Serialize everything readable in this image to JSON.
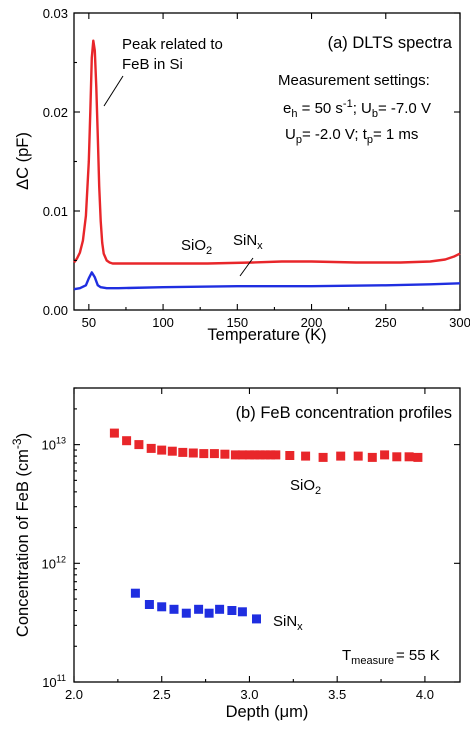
{
  "chart_data": [
    {
      "type": "line",
      "title": "(a) DLTS spectra",
      "xlabel": "Temperature (K)",
      "ylabel": "ΔC (pF)",
      "xlim": [
        40,
        300
      ],
      "ylim": [
        0,
        0.03
      ],
      "x_ticks": [
        50,
        100,
        150,
        200,
        250,
        300
      ],
      "x_tick_labels": [
        "50",
        "100",
        "150",
        "200",
        "250",
        "300"
      ],
      "y_ticks": [
        0,
        0.01,
        0.02,
        0.03
      ],
      "y_tick_labels": [
        "0.00",
        "0.01",
        "0.02",
        "0.03"
      ],
      "grid": false,
      "annotations": {
        "peak_line1": "Peak related to",
        "peak_line2": "FeB in Si",
        "settings_header": "Measurement settings:",
        "settings_row1": {
          "e": "e",
          "e_sub": "h",
          "e_val": " = 50 s",
          "e_sup": "-1",
          "u": "; U",
          "u_sub": "b",
          "u_val": "= -7.0 V"
        },
        "settings_row2": {
          "u": "U",
          "u_sub": "p",
          "u_val": "= -2.0 V; t",
          "t_sub": "p",
          "t_val": "= 1 ms"
        },
        "sio2": {
          "base": "SiO",
          "sub": "2"
        },
        "sinx": {
          "base": "SiN",
          "sub": "x"
        }
      },
      "series": [
        {
          "color": "#e8262a",
          "x": [
            40,
            42,
            44,
            46,
            48,
            50,
            51,
            52,
            53,
            54,
            55,
            56,
            57,
            58,
            59,
            60,
            62,
            64,
            66,
            70,
            80,
            100,
            130,
            160,
            180,
            200,
            230,
            260,
            280,
            290,
            296,
            300
          ],
          "y": [
            0.0048,
            0.0052,
            0.0058,
            0.007,
            0.0095,
            0.015,
            0.02,
            0.0255,
            0.0272,
            0.0262,
            0.0225,
            0.0175,
            0.0125,
            0.009,
            0.0068,
            0.0057,
            0.005,
            0.0048,
            0.0047,
            0.0047,
            0.0047,
            0.0047,
            0.0047,
            0.0048,
            0.0049,
            0.0049,
            0.0048,
            0.0048,
            0.0049,
            0.0051,
            0.0054,
            0.0057
          ]
        },
        {
          "color": "#1f2ee0",
          "x": [
            40,
            44,
            48,
            50,
            52,
            54,
            56,
            58,
            62,
            70,
            100,
            150,
            200,
            250,
            280,
            300
          ],
          "y": [
            0.0021,
            0.0022,
            0.0025,
            0.0032,
            0.0038,
            0.0033,
            0.0025,
            0.0023,
            0.0022,
            0.0022,
            0.0023,
            0.0024,
            0.0024,
            0.0025,
            0.0026,
            0.0027
          ]
        }
      ]
    },
    {
      "type": "scatter",
      "title": "(b) FeB concentration profiles",
      "xlabel": "Depth (μm)",
      "ylabel": {
        "base": "Concentration of FeB (cm",
        "sup": "-3",
        "end": ")"
      },
      "xlim": [
        2.0,
        4.2
      ],
      "ylim": [
        100000000000.0,
        30000000000000.0
      ],
      "yscale": "log",
      "x_ticks": [
        2.0,
        2.5,
        3.0,
        3.5,
        4.0
      ],
      "x_tick_labels": [
        "2.0",
        "2.5",
        "3.0",
        "3.5",
        "4.0"
      ],
      "y_ticks": [
        100000000000.0,
        1000000000000.0,
        10000000000000.0
      ],
      "y_tick_labels": [
        {
          "base": "10",
          "sup": "11"
        },
        {
          "base": "10",
          "sup": "12"
        },
        {
          "base": "10",
          "sup": "13"
        }
      ],
      "grid": false,
      "annotations": {
        "sio2": {
          "base": "SiO",
          "sub": "2"
        },
        "sinx": {
          "base": "SiN",
          "sub": "x"
        },
        "tmeasure": {
          "base": "T",
          "sub": "measure",
          "val": "= 55 K"
        }
      },
      "series": [
        {
          "color": "#e8262a",
          "x": [
            2.23,
            2.3,
            2.37,
            2.44,
            2.5,
            2.56,
            2.62,
            2.68,
            2.74,
            2.8,
            2.86,
            2.92,
            2.96,
            3.0,
            3.03,
            3.06,
            3.09,
            3.12,
            3.15,
            3.23,
            3.32,
            3.42,
            3.52,
            3.62,
            3.7,
            3.77,
            3.84,
            3.91,
            3.96
          ],
          "y": [
            12500000000000.0,
            10800000000000.0,
            10000000000000.0,
            9300000000000.0,
            9000000000000.0,
            8800000000000.0,
            8600000000000.0,
            8500000000000.0,
            8400000000000.0,
            8400000000000.0,
            8300000000000.0,
            8200000000000.0,
            8200000000000.0,
            8200000000000.0,
            8200000000000.0,
            8200000000000.0,
            8200000000000.0,
            8200000000000.0,
            8200000000000.0,
            8100000000000.0,
            8000000000000.0,
            7800000000000.0,
            8000000000000.0,
            8000000000000.0,
            7800000000000.0,
            8200000000000.0,
            7900000000000.0,
            7900000000000.0,
            7800000000000.0
          ]
        },
        {
          "color": "#1f2ee0",
          "x": [
            2.35,
            2.43,
            2.5,
            2.57,
            2.64,
            2.71,
            2.77,
            2.83,
            2.9,
            2.96,
            3.04
          ],
          "y": [
            560000000000.0,
            450000000000.0,
            430000000000.0,
            410000000000.0,
            380000000000.0,
            410000000000.0,
            380000000000.0,
            410000000000.0,
            400000000000.0,
            390000000000.0,
            340000000000.0
          ]
        }
      ]
    }
  ]
}
